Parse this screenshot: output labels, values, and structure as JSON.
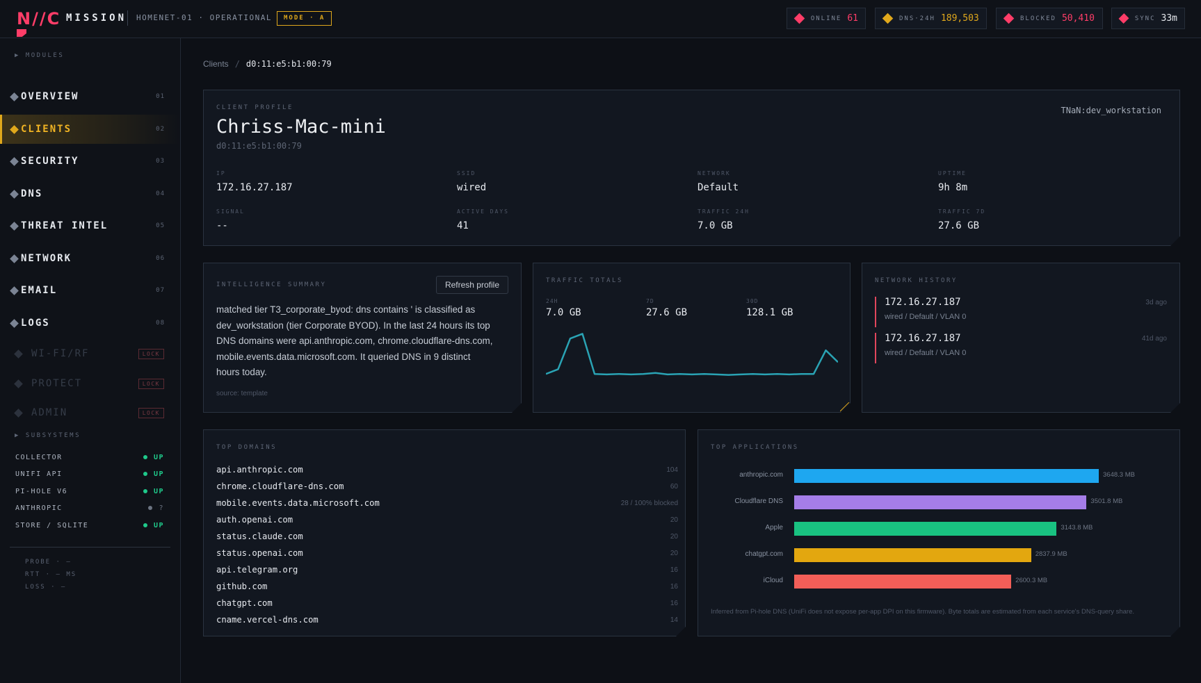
{
  "header": {
    "logo": "N//C",
    "app_name": "MISSION",
    "host_status": "HOMENET-01 · OPERATIONAL",
    "mode": "MODE · A",
    "stats": [
      {
        "label": "ONLINE",
        "value": "61",
        "color": "#ff3d68"
      },
      {
        "label": "DNS·24H",
        "value": "189,503",
        "color": "#e0a81c"
      },
      {
        "label": "BLOCKED",
        "value": "50,410",
        "color": "#ff3d68"
      },
      {
        "label": "SYNC",
        "value": "33m",
        "color": "#ff3d68"
      }
    ]
  },
  "sidebar": {
    "modules_heading": "▶ MODULES",
    "items": [
      {
        "label": "OVERVIEW",
        "num": "01"
      },
      {
        "label": "CLIENTS",
        "num": "02",
        "active": true
      },
      {
        "label": "SECURITY",
        "num": "03"
      },
      {
        "label": "DNS",
        "num": "04"
      },
      {
        "label": "THREAT INTEL",
        "num": "05"
      },
      {
        "label": "NETWORK",
        "num": "06"
      },
      {
        "label": "EMAIL",
        "num": "07"
      },
      {
        "label": "LOGS",
        "num": "08"
      }
    ],
    "locked_items": [
      {
        "label": "WI-FI/RF",
        "badge": "LOCK"
      },
      {
        "label": "PROTECT",
        "badge": "LOCK"
      },
      {
        "label": "ADMIN",
        "badge": "LOCK"
      }
    ],
    "subsystems_heading": "▶ SUBSYSTEMS",
    "subsystems": [
      {
        "name": "COLLECTOR",
        "status": "UP",
        "color": "#1fc98a"
      },
      {
        "name": "UNIFI API",
        "status": "UP",
        "color": "#1fc98a"
      },
      {
        "name": "PI-HOLE V6",
        "status": "UP",
        "color": "#1fc98a"
      },
      {
        "name": "ANTHROPIC",
        "status": "?",
        "color": "#6c7482"
      },
      {
        "name": "STORE / SQLITE",
        "status": "UP",
        "color": "#1fc98a"
      }
    ],
    "probe": [
      "PROBE · —",
      "RTT · — MS",
      "LOSS · —"
    ]
  },
  "breadcrumb": {
    "root": "Clients",
    "separator": "/",
    "current": "d0:11:e5:b1:00:79"
  },
  "profile": {
    "heading": "CLIENT PROFILE",
    "name": "Chriss-Mac-mini",
    "mac": "d0:11:e5:b1:00:79",
    "tag": "TNaN:dev_workstation",
    "fields": [
      {
        "label": "IP",
        "value": "172.16.27.187"
      },
      {
        "label": "SSID",
        "value": "wired"
      },
      {
        "label": "NETWORK",
        "value": "Default"
      },
      {
        "label": "UPTIME",
        "value": "9h 8m"
      },
      {
        "label": "SIGNAL",
        "value": "--"
      },
      {
        "label": "ACTIVE DAYS",
        "value": "41"
      },
      {
        "label": "TRAFFIC 24H",
        "value": "7.0 GB"
      },
      {
        "label": "TRAFFIC 7D",
        "value": "27.6 GB"
      }
    ]
  },
  "intel": {
    "heading": "INTELLIGENCE SUMMARY",
    "refresh_label": "Refresh profile",
    "summary": "matched tier T3_corporate_byod: dns contains ' is classified as dev_workstation (tier Corporate BYOD). In the last 24 hours its top DNS domains were api.anthropic.com, chrome.cloudflare-dns.com, mobile.events.data.microsoft.com. It queried DNS in 9 distinct hours today.",
    "source": "source: template"
  },
  "traffic": {
    "heading": "TRAFFIC TOTALS",
    "totals": [
      {
        "label": "24H",
        "value": "7.0 GB"
      },
      {
        "label": "7D",
        "value": "27.6 GB"
      },
      {
        "label": "30D",
        "value": "128.1 GB"
      }
    ],
    "sparkline_color": "#2aa3b4",
    "sparkline": [
      0.1,
      0.2,
      0.85,
      0.95,
      0.1,
      0.09,
      0.1,
      0.09,
      0.1,
      0.12,
      0.09,
      0.1,
      0.09,
      0.1,
      0.09,
      0.08,
      0.09,
      0.1,
      0.09,
      0.1,
      0.09,
      0.1,
      0.1,
      0.6,
      0.35
    ]
  },
  "history": {
    "heading": "NETWORK HISTORY",
    "entries": [
      {
        "ip": "172.16.27.187",
        "meta": "wired / Default / VLAN 0",
        "ago": "3d ago"
      },
      {
        "ip": "172.16.27.187",
        "meta": "wired / Default / VLAN 0",
        "ago": "41d ago"
      }
    ]
  },
  "domains": {
    "heading": "TOP DOMAINS",
    "rows": [
      {
        "name": "api.anthropic.com",
        "count": "104"
      },
      {
        "name": "chrome.cloudflare-dns.com",
        "count": "60"
      },
      {
        "name": "mobile.events.data.microsoft.com",
        "count": "28 / 100% blocked"
      },
      {
        "name": "auth.openai.com",
        "count": "20"
      },
      {
        "name": "status.claude.com",
        "count": "20"
      },
      {
        "name": "status.openai.com",
        "count": "20"
      },
      {
        "name": "api.telegram.org",
        "count": "16"
      },
      {
        "name": "github.com",
        "count": "16"
      },
      {
        "name": "chatgpt.com",
        "count": "16"
      },
      {
        "name": "cname.vercel-dns.com",
        "count": "14"
      }
    ]
  },
  "apps": {
    "heading": "TOP APPLICATIONS",
    "rows": [
      {
        "name": "anthropic.com",
        "value_mb": 3648.3,
        "label": "3648.3 MB",
        "color": "#1ea7f0"
      },
      {
        "name": "Cloudflare DNS",
        "value_mb": 3501.8,
        "label": "3501.8 MB",
        "color": "#a57de8"
      },
      {
        "name": "Apple",
        "value_mb": 3143.8,
        "label": "3143.8 MB",
        "color": "#19c281"
      },
      {
        "name": "chatgpt.com",
        "value_mb": 2837.9,
        "label": "2837.9 MB",
        "color": "#e3a70f"
      },
      {
        "name": "iCloud",
        "value_mb": 2600.3,
        "label": "2600.3 MB",
        "color": "#f25e58"
      }
    ],
    "note": "Inferred from Pi-hole DNS (UniFi does not expose per-app DPI on this firmware). Byte totals are estimated from each service's DNS-query share."
  }
}
